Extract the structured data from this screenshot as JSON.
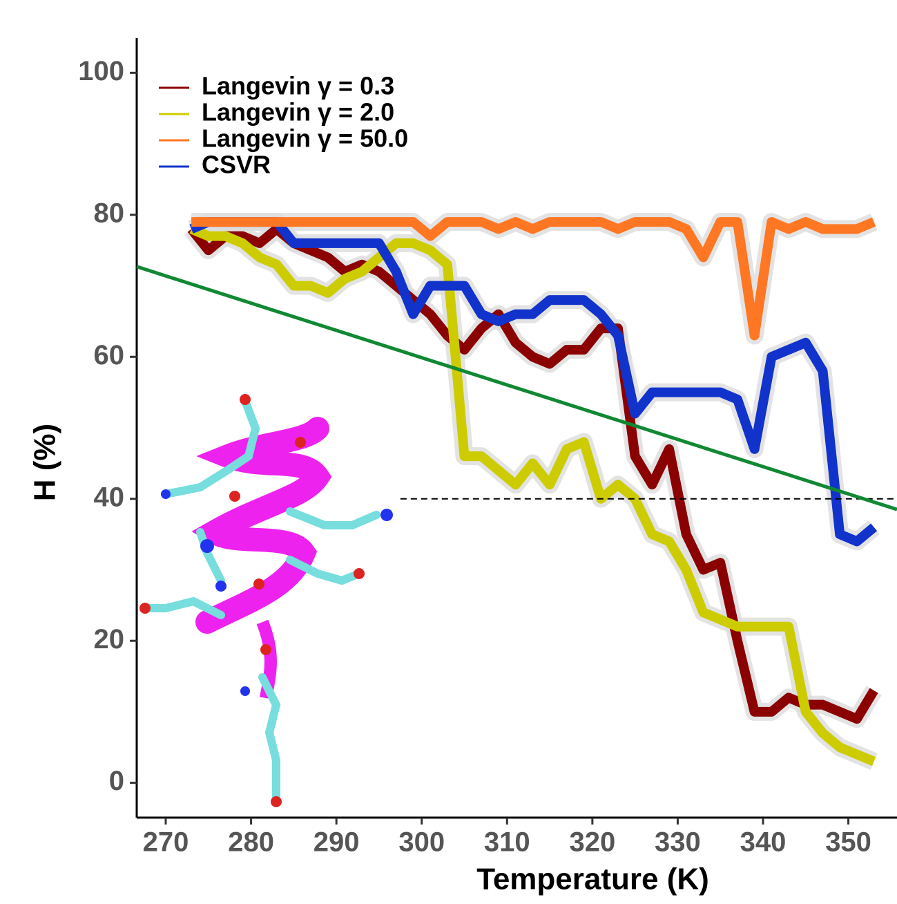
{
  "chart_data": {
    "type": "line",
    "xlabel": "Temperature (K)",
    "ylabel": "H (%)",
    "xlim": [
      266.6,
      355.7
    ],
    "ylim": [
      -4.9,
      104.9
    ],
    "xticks": [
      270,
      280,
      290,
      300,
      310,
      320,
      330,
      340,
      350
    ],
    "yticks": [
      0,
      20,
      40,
      60,
      80,
      100
    ],
    "legend": "top-left",
    "band_color": "#dcdcdc",
    "x": [
      273,
      275,
      277,
      279,
      281,
      283,
      285,
      287,
      289,
      291,
      293,
      295,
      297,
      299,
      301,
      303,
      305,
      307,
      309,
      311,
      313,
      315,
      317,
      319,
      321,
      323,
      325,
      327,
      329,
      331,
      333,
      335,
      337,
      339,
      341,
      343,
      345,
      347,
      349,
      351,
      353
    ],
    "series": [
      {
        "name": "Langevin γ = 0.3",
        "color": "#8b0000",
        "values": [
          78,
          75,
          77,
          77,
          76,
          78,
          76,
          75,
          74,
          72,
          73,
          72,
          70,
          68,
          66,
          63,
          61,
          64,
          66,
          62,
          60,
          59,
          61,
          61,
          64,
          64,
          46,
          42,
          47,
          35,
          30,
          31,
          20,
          10,
          10,
          12,
          11,
          11,
          10,
          9,
          13
        ]
      },
      {
        "name": "Langevin γ = 2.0",
        "color": "#cccc00",
        "values": [
          78,
          77,
          77,
          76,
          74,
          73,
          70,
          70,
          69,
          71,
          72,
          74,
          76,
          76,
          75,
          73,
          46,
          46,
          44,
          42,
          45,
          42,
          47,
          48,
          40,
          42,
          40,
          35,
          34,
          30,
          24,
          23,
          22,
          22,
          22,
          22,
          10,
          7,
          5,
          4,
          3
        ]
      },
      {
        "name": "CSVR",
        "color": "#1133cc",
        "values": [
          78,
          79,
          79,
          79,
          79,
          79,
          76,
          76,
          76,
          76,
          76,
          76,
          72,
          66,
          70,
          70,
          70,
          66,
          65,
          66,
          66,
          68,
          68,
          68,
          66,
          63,
          52,
          55,
          55,
          55,
          55,
          55,
          54,
          47,
          60,
          61,
          62,
          58,
          35,
          34,
          36
        ]
      },
      {
        "name": "Langevin γ = 50.0",
        "color": "#ff7722",
        "values": [
          79,
          79,
          79,
          79,
          79,
          79,
          79,
          79,
          79,
          79,
          79,
          79,
          79,
          79,
          77,
          79,
          79,
          79,
          78,
          79,
          78,
          79,
          79,
          79,
          79,
          78,
          79,
          79,
          79,
          78,
          74,
          79,
          79,
          63,
          79,
          78,
          79,
          78,
          78,
          78,
          79
        ]
      }
    ],
    "legend_order": [
      0,
      1,
      3,
      2
    ],
    "fit_line": {
      "x": [
        266.6,
        355.7
      ],
      "values": [
        72.7,
        38.5
      ],
      "color": "#118833"
    },
    "threshold": {
      "value": 40,
      "x": [
        297.5,
        355.7
      ],
      "color": "#000000"
    }
  }
}
